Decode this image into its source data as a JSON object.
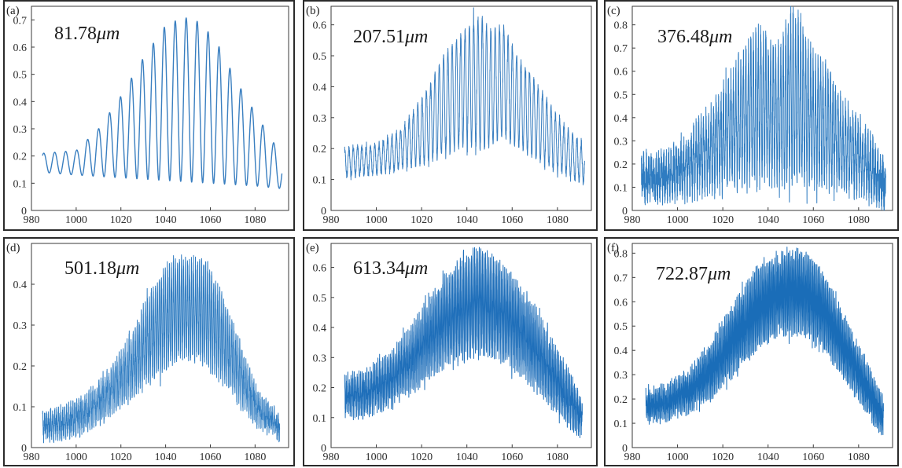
{
  "chart_data": [
    {
      "type": "line",
      "panel_label": "(a)",
      "annotation_value": "81.78",
      "annotation_unit": "μm",
      "xlim": [
        980,
        1095
      ],
      "ylim": [
        0,
        0.75
      ],
      "x_ticks": [
        980,
        1000,
        1020,
        1040,
        1060,
        1080
      ],
      "y_ticks": [
        0,
        0.1,
        0.2,
        0.3,
        0.4,
        0.5,
        0.6,
        0.7
      ],
      "x_range": [
        985,
        1092
      ],
      "series": [
        {
          "color": "#3a7fc0",
          "stroke_width": 1.4,
          "model": "periodic",
          "period_nm": 4.9,
          "phase_x": 985.5,
          "peak_envelope": {
            "x": [
              985,
              1000,
              1010,
              1020,
              1030,
              1040,
              1048,
              1056,
              1064,
              1072,
              1080,
              1086,
              1092
            ],
            "y": [
              0.21,
              0.22,
              0.3,
              0.42,
              0.56,
              0.68,
              0.71,
              0.69,
              0.6,
              0.47,
              0.36,
              0.28,
              0.2
            ]
          },
          "trough_envelope": {
            "x": [
              985,
              1000,
              1020,
              1040,
              1060,
              1080,
              1092
            ],
            "y": [
              0.14,
              0.13,
              0.12,
              0.11,
              0.1,
              0.09,
              0.08
            ]
          },
          "noise": 0.0,
          "samples": 1600
        }
      ]
    },
    {
      "type": "line",
      "panel_label": "(b)",
      "annotation_value": "207.51",
      "annotation_unit": "μm",
      "xlim": [
        980,
        1095
      ],
      "ylim": [
        0,
        0.66
      ],
      "x_ticks": [
        980,
        1000,
        1020,
        1040,
        1060,
        1080
      ],
      "y_ticks": [
        0,
        0.1,
        0.2,
        0.3,
        0.4,
        0.5,
        0.6
      ],
      "x_range": [
        986,
        1092
      ],
      "series": [
        {
          "color": "#3a7fc0",
          "stroke_width": 1.0,
          "model": "periodic",
          "period_nm": 1.9,
          "phase_x": 986,
          "peak_envelope": {
            "x": [
              986,
              1000,
              1010,
              1020,
              1030,
              1036,
              1042,
              1046,
              1050,
              1056,
              1062,
              1070,
              1080,
              1092
            ],
            "y": [
              0.2,
              0.21,
              0.25,
              0.36,
              0.5,
              0.56,
              0.6,
              0.63,
              0.58,
              0.6,
              0.5,
              0.42,
              0.3,
              0.2
            ]
          },
          "trough_envelope": {
            "x": [
              986,
              1000,
              1020,
              1030,
              1040,
              1046,
              1050,
              1056,
              1070,
              1080,
              1092
            ],
            "y": [
              0.11,
              0.12,
              0.15,
              0.18,
              0.22,
              0.2,
              0.21,
              0.24,
              0.17,
              0.13,
              0.09
            ]
          },
          "noise": 0.01,
          "samples": 2400
        }
      ]
    },
    {
      "type": "line",
      "panel_label": "(c)",
      "annotation_value": "376.48",
      "annotation_unit": "μm",
      "xlim": [
        980,
        1095
      ],
      "ylim": [
        0,
        0.88
      ],
      "x_ticks": [
        980,
        1000,
        1020,
        1040,
        1060,
        1080
      ],
      "y_ticks": [
        0,
        0.1,
        0.2,
        0.3,
        0.4,
        0.5,
        0.6,
        0.7,
        0.8
      ],
      "x_range": [
        984,
        1092
      ],
      "series": [
        {
          "color": "#2f7cc1",
          "stroke_width": 1.0,
          "model": "periodic",
          "period_nm": 1.1,
          "phase_x": 984,
          "peak_envelope": {
            "x": [
              984,
              995,
              1005,
              1015,
              1025,
              1032,
              1038,
              1045,
              1050,
              1055,
              1060,
              1066,
              1072,
              1080,
              1086,
              1092
            ],
            "y": [
              0.18,
              0.2,
              0.28,
              0.4,
              0.58,
              0.7,
              0.76,
              0.65,
              0.82,
              0.78,
              0.62,
              0.58,
              0.45,
              0.35,
              0.25,
              0.14
            ]
          },
          "trough_envelope": {
            "x": [
              984,
              1000,
              1020,
              1040,
              1060,
              1080,
              1092
            ],
            "y": [
              0.09,
              0.1,
              0.14,
              0.16,
              0.15,
              0.11,
              0.07
            ]
          },
          "noise": 0.08,
          "samples": 2600
        }
      ]
    },
    {
      "type": "line",
      "panel_label": "(d)",
      "annotation_value": "501.18",
      "annotation_unit": "μm",
      "xlim": [
        980,
        1095
      ],
      "ylim": [
        0,
        0.5
      ],
      "x_ticks": [
        980,
        1000,
        1020,
        1040,
        1060,
        1080
      ],
      "y_ticks": [
        0,
        0.1,
        0.2,
        0.3,
        0.4
      ],
      "x_range": [
        985,
        1091
      ],
      "series": [
        {
          "color": "#2f7cc1",
          "stroke_width": 1.0,
          "model": "periodic",
          "period_nm": 0.9,
          "phase_x": 985,
          "peak_envelope": {
            "x": [
              985,
              995,
              1005,
              1015,
              1025,
              1032,
              1040,
              1046,
              1052,
              1058,
              1064,
              1070,
              1076,
              1082,
              1091
            ],
            "y": [
              0.07,
              0.09,
              0.12,
              0.18,
              0.27,
              0.36,
              0.43,
              0.46,
              0.44,
              0.45,
              0.38,
              0.3,
              0.2,
              0.12,
              0.07
            ]
          },
          "trough_envelope": {
            "x": [
              985,
              995,
              1005,
              1015,
              1025,
              1035,
              1045,
              1052,
              1060,
              1070,
              1080,
              1091
            ],
            "y": [
              0.03,
              0.03,
              0.05,
              0.09,
              0.13,
              0.18,
              0.22,
              0.23,
              0.2,
              0.14,
              0.07,
              0.03
            ]
          },
          "noise": 0.02,
          "samples": 2800
        }
      ]
    },
    {
      "type": "line",
      "panel_label": "(e)",
      "annotation_value": "613.34",
      "annotation_unit": "μm",
      "xlim": [
        980,
        1095
      ],
      "ylim": [
        0,
        0.68
      ],
      "x_ticks": [
        980,
        1000,
        1020,
        1040,
        1060,
        1080
      ],
      "y_ticks": [
        0,
        0.1,
        0.2,
        0.3,
        0.4,
        0.5,
        0.6
      ],
      "x_range": [
        986,
        1091
      ],
      "series": [
        {
          "color": "#1f6fba",
          "stroke_width": 1.0,
          "model": "periodic",
          "period_nm": 0.7,
          "phase_x": 986,
          "peak_envelope": {
            "x": [
              986,
              995,
              1005,
              1015,
              1025,
              1033,
              1040,
              1046,
              1050,
              1055,
              1062,
              1070,
              1078,
              1085,
              1091
            ],
            "y": [
              0.22,
              0.24,
              0.29,
              0.38,
              0.5,
              0.58,
              0.62,
              0.65,
              0.62,
              0.6,
              0.54,
              0.45,
              0.34,
              0.24,
              0.14
            ]
          },
          "trough_envelope": {
            "x": [
              986,
              995,
              1005,
              1015,
              1025,
              1035,
              1045,
              1055,
              1065,
              1075,
              1085,
              1091
            ],
            "y": [
              0.12,
              0.12,
              0.15,
              0.2,
              0.26,
              0.3,
              0.33,
              0.31,
              0.25,
              0.17,
              0.09,
              0.05
            ]
          },
          "noise": 0.03,
          "samples": 3000
        }
      ]
    },
    {
      "type": "line",
      "panel_label": "(f)",
      "annotation_value": "722.87",
      "annotation_unit": "μm",
      "xlim": [
        980,
        1095
      ],
      "ylim": [
        0,
        0.84
      ],
      "x_ticks": [
        980,
        1000,
        1020,
        1040,
        1060,
        1080
      ],
      "y_ticks": [
        0,
        0.1,
        0.2,
        0.3,
        0.4,
        0.5,
        0.6,
        0.7,
        0.8
      ],
      "x_range": [
        986,
        1091
      ],
      "series": [
        {
          "color": "#1a6db8",
          "stroke_width": 1.0,
          "model": "periodic",
          "period_nm": 0.6,
          "phase_x": 986,
          "peak_envelope": {
            "x": [
              986,
              995,
              1005,
              1015,
              1025,
              1035,
              1045,
              1052,
              1060,
              1068,
              1075,
              1082,
              1091
            ],
            "y": [
              0.22,
              0.24,
              0.3,
              0.42,
              0.58,
              0.72,
              0.78,
              0.8,
              0.76,
              0.64,
              0.5,
              0.36,
              0.18
            ]
          },
          "trough_envelope": {
            "x": [
              986,
              995,
              1005,
              1015,
              1025,
              1035,
              1045,
              1055,
              1065,
              1075,
              1085,
              1091
            ],
            "y": [
              0.12,
              0.13,
              0.16,
              0.22,
              0.32,
              0.42,
              0.48,
              0.49,
              0.42,
              0.28,
              0.14,
              0.06
            ]
          },
          "noise": 0.03,
          "samples": 3200
        }
      ]
    }
  ]
}
